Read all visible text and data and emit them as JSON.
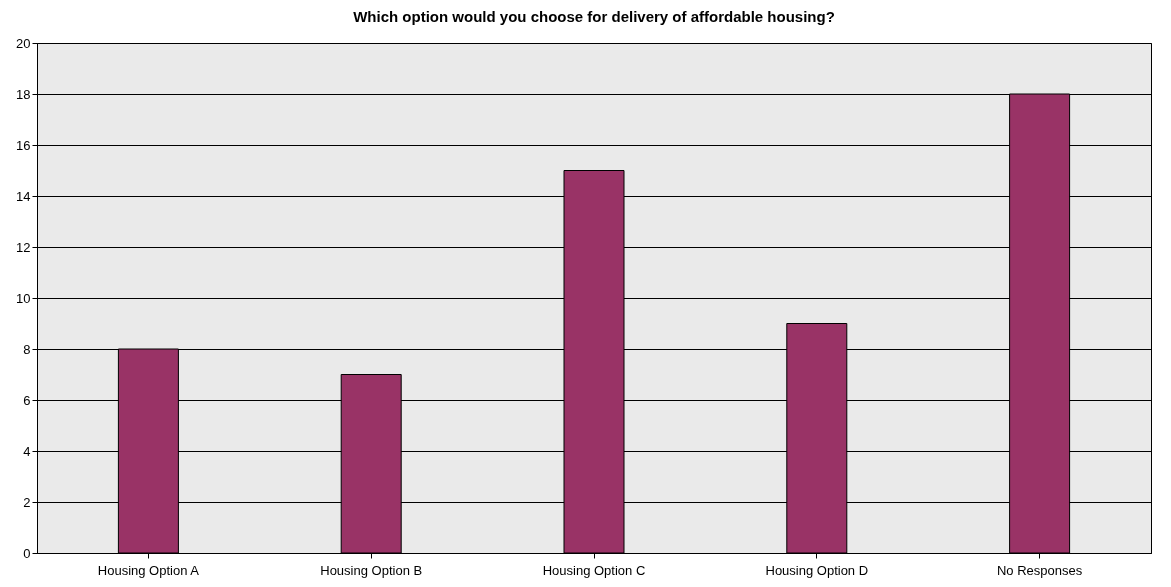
{
  "chart_data": {
    "type": "bar",
    "title": "Which option would you choose for delivery of affordable housing?",
    "categories": [
      "Housing Option A",
      "Housing Option B",
      "Housing Option C",
      "Housing Option D",
      "No Responses"
    ],
    "values": [
      8,
      7,
      15,
      9,
      18
    ],
    "color": "#993366",
    "ylim": [
      0,
      20
    ],
    "yticks": [
      0,
      2,
      4,
      6,
      8,
      10,
      12,
      14,
      16,
      18,
      20
    ],
    "grid": "y"
  }
}
